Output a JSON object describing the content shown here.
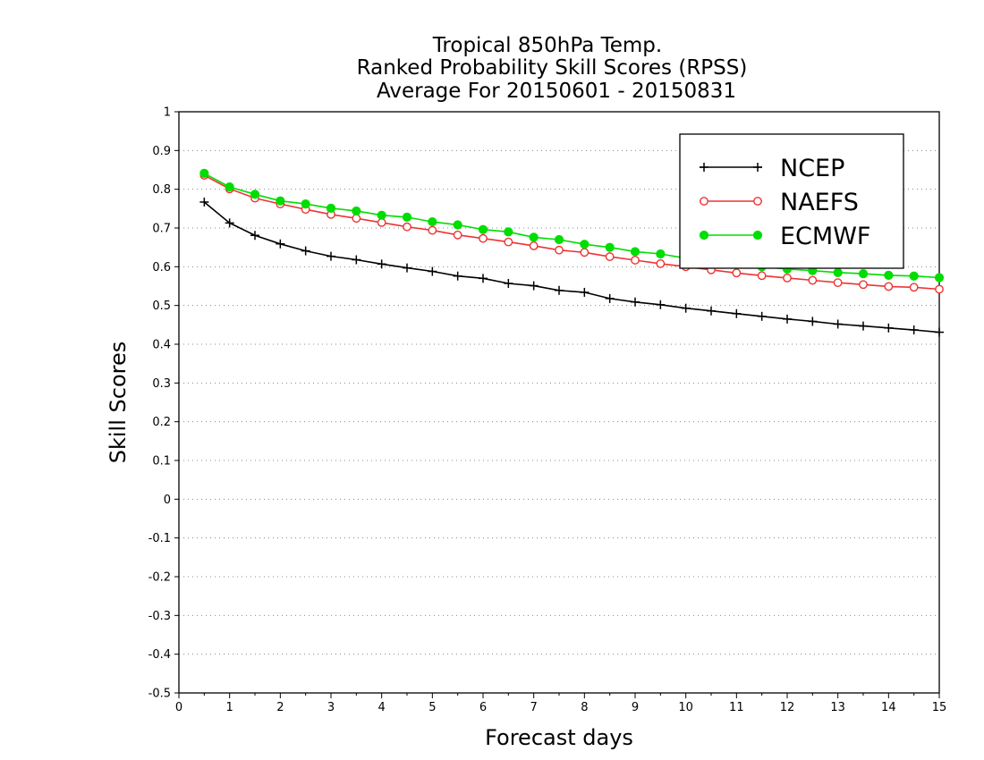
{
  "chart_data": {
    "type": "line",
    "title_lines": [
      "Tropical 850hPa Temp.",
      "Ranked Probability Skill Scores (RPSS)",
      "Average For 20150601 - 20150831"
    ],
    "xlabel": "Forecast days",
    "ylabel": "Skill Scores",
    "xlim": [
      0,
      15
    ],
    "ylim": [
      -0.5,
      1
    ],
    "x_ticks": [
      0,
      1,
      2,
      3,
      4,
      5,
      6,
      7,
      8,
      9,
      10,
      11,
      12,
      13,
      14,
      15
    ],
    "x_tick_labels": [
      "0",
      "1",
      "2",
      "3",
      "4",
      "5",
      "6",
      "7",
      "8",
      "9",
      "10",
      "11",
      "12",
      "13",
      "14",
      "15"
    ],
    "y_ticks": [
      -0.5,
      -0.4,
      -0.3,
      -0.2,
      -0.1,
      0,
      0.1,
      0.2,
      0.3,
      0.4,
      0.5,
      0.6,
      0.7,
      0.8,
      0.9,
      1
    ],
    "y_tick_labels": [
      "-0.5",
      "-0.4",
      "-0.3",
      "-0.2",
      "-0.1",
      "0",
      "0.1",
      "0.2",
      "0.3",
      "0.4",
      "0.5",
      "0.6",
      "0.7",
      "0.8",
      "0.9",
      "1"
    ],
    "grid": "horizontal dotted",
    "legend_position": "top-right",
    "x": [
      0.5,
      1,
      1.5,
      2,
      2.5,
      3,
      3.5,
      4,
      4.5,
      5,
      5.5,
      6,
      6.5,
      7,
      7.5,
      8,
      8.5,
      9,
      9.5,
      10,
      10.5,
      11,
      11.5,
      12,
      12.5,
      13,
      13.5,
      14,
      14.5,
      15
    ],
    "series": [
      {
        "name": "NCEP",
        "color": "#000000",
        "marker": "plus",
        "values": [
          0.767,
          0.713,
          0.681,
          0.659,
          0.641,
          0.627,
          0.618,
          0.607,
          0.597,
          0.588,
          0.576,
          0.57,
          0.557,
          0.551,
          0.539,
          0.534,
          0.518,
          0.509,
          0.502,
          0.493,
          0.486,
          0.479,
          0.472,
          0.465,
          0.459,
          0.452,
          0.447,
          0.442,
          0.437,
          0.431
        ]
      },
      {
        "name": "NAEFS",
        "color": "#ee3333",
        "marker": "open-circle",
        "values": [
          0.836,
          0.801,
          0.777,
          0.762,
          0.748,
          0.735,
          0.725,
          0.714,
          0.703,
          0.694,
          0.682,
          0.673,
          0.664,
          0.654,
          0.643,
          0.637,
          0.626,
          0.617,
          0.608,
          0.6,
          0.592,
          0.584,
          0.577,
          0.571,
          0.565,
          0.559,
          0.554,
          0.549,
          0.547,
          0.542
        ]
      },
      {
        "name": "ECMWF",
        "color": "#00dd00",
        "marker": "filled-circle",
        "values": [
          0.841,
          0.806,
          0.787,
          0.77,
          0.762,
          0.751,
          0.744,
          0.733,
          0.728,
          0.716,
          0.708,
          0.696,
          0.69,
          0.676,
          0.67,
          0.658,
          0.65,
          0.639,
          0.633,
          0.622,
          0.614,
          0.606,
          0.6,
          0.594,
          0.59,
          0.585,
          0.582,
          0.578,
          0.576,
          0.572
        ]
      }
    ]
  }
}
